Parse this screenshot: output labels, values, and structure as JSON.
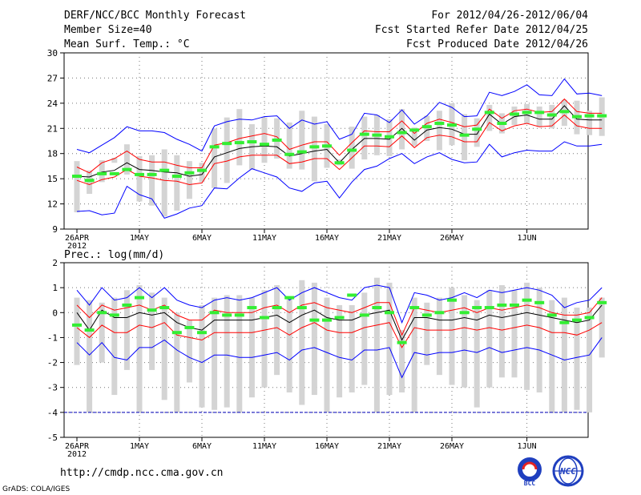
{
  "header": {
    "title": "DERF/NCC/BCC Monthly Forecast",
    "member_size": "Member Size=40",
    "variable": "Mean Surf. Temp.: °C",
    "period": "For 2012/04/26-2012/06/04",
    "refer_date": "Fcst Started Refer Date 2012/04/25",
    "produced_date": "Fcst Produced Date 2012/04/26"
  },
  "footer": {
    "url": "http://cmdp.ncc.cma.gov.cn",
    "grads_credit": "GrADS: COLA/IGES",
    "logo_bcc": "BCC",
    "logo_ncc": "NCC"
  },
  "colors": {
    "ensemble_mean": "#000000",
    "inner_band": "#ff0000",
    "outer_band": "#0000ff",
    "observation": "#33ee33",
    "spread_bar": "#d4d4d4",
    "grid": "#777777",
    "baseline": "#0000bb"
  },
  "chart_data": [
    {
      "type": "line",
      "title": "Mean Surf. Temp.: °C",
      "ylim": [
        9,
        30
      ],
      "yticks": [
        9,
        12,
        15,
        18,
        21,
        24,
        27,
        30
      ],
      "ytick_labels": [
        "9",
        "12",
        "15",
        "18",
        "21",
        "24",
        "27",
        "30"
      ],
      "xticks": [
        {
          "day": 0,
          "label": "26APR",
          "sublabel": "2012"
        },
        {
          "day": 5,
          "label": "1MAY"
        },
        {
          "day": 10,
          "label": "6MAY"
        },
        {
          "day": 15,
          "label": "11MAY"
        },
        {
          "day": 20,
          "label": "16MAY"
        },
        {
          "day": 25,
          "label": "21MAY"
        },
        {
          "day": 30,
          "label": "26MAY"
        },
        {
          "day": 36,
          "label": "1JUN"
        }
      ],
      "series": [
        {
          "name": "ensemble_mean",
          "values": [
            15.3,
            15.2,
            15.8,
            16.0,
            16.9,
            16.1,
            16.0,
            15.8,
            15.7,
            15.3,
            15.5,
            17.6,
            18.1,
            18.6,
            18.8,
            18.9,
            18.8,
            17.7,
            18.0,
            18.3,
            18.5,
            16.9,
            18.5,
            19.8,
            19.8,
            19.7,
            21.0,
            19.6,
            20.8,
            21.1,
            20.9,
            20.3,
            20.3,
            22.7,
            21.5,
            22.4,
            22.6,
            22.1,
            22.1,
            23.7,
            22.1,
            22.0,
            22.0
          ]
        },
        {
          "name": "inner_upper",
          "values": [
            16.4,
            15.7,
            16.9,
            17.4,
            18.3,
            17.3,
            17.0,
            17.0,
            16.6,
            16.3,
            16.3,
            19.0,
            19.3,
            19.8,
            20.1,
            20.4,
            20.0,
            18.5,
            19.0,
            19.4,
            19.4,
            17.8,
            19.3,
            20.7,
            20.6,
            20.6,
            21.9,
            20.4,
            21.6,
            22.1,
            21.7,
            21.2,
            21.4,
            23.3,
            22.2,
            23.1,
            23.3,
            22.9,
            23.0,
            24.5,
            23.0,
            22.8,
            22.8
          ]
        },
        {
          "name": "inner_lower",
          "values": [
            14.8,
            14.3,
            14.9,
            15.2,
            16.1,
            15.3,
            15.1,
            14.8,
            14.7,
            14.3,
            14.5,
            16.8,
            17.1,
            17.6,
            17.8,
            17.8,
            17.8,
            16.8,
            17.0,
            17.4,
            17.4,
            16.1,
            17.5,
            18.9,
            18.9,
            18.8,
            20.1,
            18.7,
            19.9,
            20.2,
            20.0,
            19.4,
            19.4,
            21.7,
            20.7,
            21.3,
            21.6,
            21.2,
            21.3,
            22.6,
            21.3,
            21.0,
            21.0
          ]
        },
        {
          "name": "outer_upper",
          "values": [
            18.5,
            18.1,
            19.0,
            19.9,
            21.2,
            20.7,
            20.7,
            20.5,
            19.7,
            19.1,
            18.3,
            21.3,
            21.8,
            22.1,
            22.0,
            22.4,
            22.5,
            21.0,
            22.0,
            21.5,
            21.8,
            19.7,
            20.3,
            22.8,
            22.6,
            21.7,
            23.2,
            21.5,
            22.5,
            24.1,
            23.5,
            22.4,
            22.5,
            25.3,
            24.9,
            25.4,
            26.2,
            25.0,
            24.9,
            26.9,
            25.1,
            25.2,
            24.9
          ]
        },
        {
          "name": "outer_lower",
          "values": [
            11.1,
            11.2,
            10.7,
            10.9,
            14.1,
            13.1,
            12.6,
            10.3,
            10.8,
            11.5,
            11.8,
            13.9,
            13.8,
            15.1,
            16.2,
            15.7,
            15.2,
            13.9,
            13.5,
            14.5,
            14.7,
            12.7,
            14.6,
            16.1,
            16.5,
            17.4,
            18.0,
            16.8,
            17.6,
            18.1,
            17.3,
            16.9,
            17.0,
            19.1,
            17.6,
            18.1,
            18.4,
            18.3,
            18.3,
            19.4,
            18.9,
            18.9,
            19.1
          ]
        },
        {
          "name": "spread_max",
          "values": [
            17.1,
            16.0,
            17.2,
            17.5,
            19.1,
            17.7,
            17.8,
            18.5,
            17.8,
            17.1,
            16.9,
            21.0,
            22.3,
            23.3,
            21.5,
            22.3,
            22.2,
            21.7,
            23.1,
            22.4,
            21.5,
            17.3,
            21.2,
            22.4,
            22.6,
            22.1,
            23.3,
            21.1,
            22.5,
            23.1,
            24.0,
            22.7,
            22.2,
            23.8,
            22.8,
            23.6,
            23.9,
            23.6,
            23.8,
            24.4,
            24.3,
            23.1,
            24.7
          ]
        },
        {
          "name": "spread_min",
          "values": [
            11.0,
            13.2,
            14.6,
            16.9,
            15.5,
            12.3,
            11.8,
            10.5,
            11.2,
            12.6,
            14.6,
            13.9,
            14.5,
            16.6,
            16.1,
            16.9,
            17.4,
            16.2,
            16.1,
            14.7,
            16.3,
            16.6,
            16.2,
            17.3,
            17.8,
            17.7,
            18.5,
            18.9,
            19.5,
            18.4,
            19.0,
            17.2,
            18.8,
            20.7,
            20.4,
            21.4,
            21.6,
            21.2,
            21.0,
            21.3,
            20.3,
            20.2,
            20.1
          ]
        },
        {
          "name": "observation",
          "values": [
            15.3,
            14.8,
            15.6,
            15.6,
            16.1,
            15.5,
            15.5,
            16.0,
            15.3,
            15.7,
            16.0,
            18.8,
            19.2,
            19.3,
            19.4,
            19.1,
            19.6,
            17.9,
            18.2,
            18.8,
            18.9,
            16.9,
            18.4,
            20.3,
            20.2,
            20.0,
            20.5,
            20.8,
            21.2,
            21.6,
            21.4,
            20.2,
            20.9,
            22.9,
            21.6,
            22.7,
            22.9,
            22.9,
            22.6,
            23.0,
            22.4,
            22.5,
            22.5
          ]
        }
      ]
    },
    {
      "type": "line",
      "title": "Prec.: log(mm/d)",
      "ylim": [
        -5,
        2
      ],
      "yticks": [
        -5,
        -4,
        -3,
        -2,
        -1,
        0,
        1,
        2
      ],
      "ytick_labels": [
        "-5",
        "-4",
        "-3",
        "-2",
        "-1",
        "0",
        "1",
        "2"
      ],
      "xticks": [
        {
          "day": 0,
          "label": "26APR",
          "sublabel": "2012"
        },
        {
          "day": 5,
          "label": "1MAY"
        },
        {
          "day": 10,
          "label": "6MAY"
        },
        {
          "day": 15,
          "label": "11MAY"
        },
        {
          "day": 20,
          "label": "16MAY"
        },
        {
          "day": 25,
          "label": "21MAY"
        },
        {
          "day": 30,
          "label": "26MAY"
        },
        {
          "day": 36,
          "label": "1JUN"
        }
      ],
      "baseline": -4,
      "series": [
        {
          "name": "ensemble_mean",
          "values": [
            0.0,
            -0.7,
            0.1,
            -0.2,
            -0.2,
            0.0,
            -0.1,
            0.0,
            -0.4,
            -0.6,
            -0.7,
            -0.3,
            -0.3,
            -0.3,
            -0.3,
            -0.2,
            -0.1,
            -0.4,
            -0.1,
            0.1,
            -0.2,
            -0.3,
            -0.3,
            -0.1,
            0.0,
            0.1,
            -1.1,
            -0.2,
            -0.2,
            -0.3,
            -0.3,
            -0.2,
            -0.3,
            -0.1,
            -0.2,
            -0.1,
            0.0,
            -0.1,
            -0.2,
            -0.3,
            -0.4,
            -0.3,
            0.3
          ]
        },
        {
          "name": "inner_upper",
          "values": [
            0.3,
            -0.2,
            0.3,
            0.1,
            0.2,
            0.3,
            0.1,
            0.3,
            -0.1,
            -0.3,
            -0.3,
            0.1,
            0.0,
            0.0,
            0.0,
            0.2,
            0.3,
            0.0,
            0.3,
            0.4,
            0.2,
            0.1,
            0.0,
            0.2,
            0.4,
            0.4,
            -0.9,
            0.2,
            0.1,
            0.0,
            0.1,
            0.2,
            0.0,
            0.2,
            0.1,
            0.2,
            0.3,
            0.2,
            0.0,
            -0.1,
            -0.1,
            0.0,
            0.6
          ]
        },
        {
          "name": "inner_lower",
          "values": [
            -0.6,
            -1.0,
            -0.5,
            -0.8,
            -0.8,
            -0.5,
            -0.6,
            -0.4,
            -0.9,
            -1.0,
            -1.1,
            -0.8,
            -0.8,
            -0.8,
            -0.8,
            -0.7,
            -0.6,
            -0.9,
            -0.6,
            -0.4,
            -0.7,
            -0.8,
            -0.8,
            -0.6,
            -0.5,
            -0.4,
            -1.4,
            -0.6,
            -0.7,
            -0.7,
            -0.7,
            -0.6,
            -0.7,
            -0.6,
            -0.7,
            -0.6,
            -0.5,
            -0.6,
            -0.8,
            -0.8,
            -0.9,
            -0.7,
            -0.4
          ]
        },
        {
          "name": "outer_upper",
          "values": [
            0.9,
            0.3,
            1.0,
            0.5,
            0.6,
            1.0,
            0.6,
            1.0,
            0.5,
            0.3,
            0.2,
            0.5,
            0.6,
            0.5,
            0.6,
            0.8,
            1.0,
            0.5,
            0.8,
            1.0,
            0.8,
            0.6,
            0.5,
            1.0,
            1.1,
            1.0,
            -0.4,
            0.8,
            0.7,
            0.5,
            0.6,
            0.8,
            0.6,
            0.9,
            0.8,
            0.9,
            1.0,
            0.9,
            0.7,
            0.2,
            0.4,
            0.5,
            1.0
          ]
        },
        {
          "name": "outer_lower",
          "values": [
            -1.2,
            -1.7,
            -1.2,
            -1.8,
            -1.9,
            -1.4,
            -1.4,
            -1.1,
            -1.5,
            -1.8,
            -2.0,
            -1.7,
            -1.7,
            -1.8,
            -1.8,
            -1.7,
            -1.6,
            -1.9,
            -1.5,
            -1.4,
            -1.6,
            -1.8,
            -1.9,
            -1.5,
            -1.5,
            -1.4,
            -2.6,
            -1.6,
            -1.7,
            -1.6,
            -1.6,
            -1.5,
            -1.6,
            -1.4,
            -1.6,
            -1.5,
            -1.4,
            -1.5,
            -1.7,
            -1.9,
            -1.8,
            -1.7,
            -1.0
          ]
        },
        {
          "name": "spread_max",
          "values": [
            0.6,
            0.5,
            0.4,
            0.6,
            0.9,
            1.1,
            0.8,
            0.6,
            0.0,
            -0.3,
            0.3,
            0.6,
            0.7,
            0.7,
            0.6,
            0.9,
            1.1,
            0.6,
            1.3,
            1.2,
            0.6,
            0.3,
            0.3,
            0.8,
            1.4,
            1.2,
            -0.7,
            0.6,
            0.4,
            0.6,
            1.0,
            0.7,
            0.5,
            0.9,
            1.1,
            0.9,
            1.2,
            1.0,
            0.5,
            0.6,
            0.2,
            0.2,
            0.6
          ]
        },
        {
          "name": "spread_min",
          "values": [
            -2.1,
            -4.0,
            -2.0,
            -3.3,
            -2.3,
            -4.0,
            -2.3,
            -3.5,
            -4.0,
            -2.8,
            -3.8,
            -3.9,
            -3.8,
            -4.0,
            -3.4,
            -3.0,
            -2.5,
            -3.2,
            -3.7,
            -3.3,
            -4.0,
            -3.4,
            -3.2,
            -2.9,
            -4.0,
            -3.3,
            -3.2,
            -4.0,
            -2.1,
            -2.5,
            -2.9,
            -3.0,
            -3.8,
            -3.0,
            -2.6,
            -2.6,
            -3.1,
            -3.2,
            -4.0,
            -4.0,
            -3.9,
            -4.0,
            -1.8
          ]
        },
        {
          "name": "observation",
          "values": [
            -0.5,
            -0.7,
            0.0,
            -0.1,
            0.3,
            0.6,
            0.1,
            0.2,
            -0.8,
            -0.6,
            -0.8,
            0.0,
            -0.1,
            -0.1,
            0.2,
            -0.2,
            0.2,
            0.6,
            0.2,
            -0.3,
            -0.3,
            -0.2,
            0.7,
            -0.1,
            0.2,
            0.0,
            -1.2,
            0.2,
            -0.1,
            0.0,
            0.5,
            0.0,
            0.2,
            0.2,
            0.3,
            0.3,
            0.5,
            0.4,
            -0.1,
            -0.4,
            -0.3,
            -0.2,
            0.4
          ]
        }
      ]
    }
  ]
}
